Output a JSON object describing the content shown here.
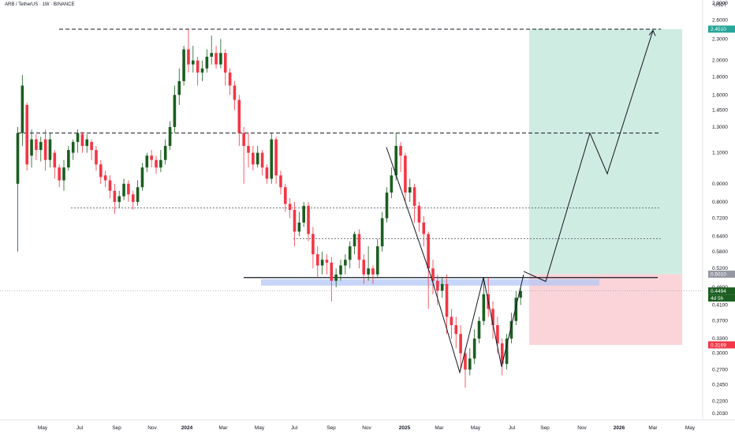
{
  "header": {
    "symbol_title": "ARB / TetherUS · 1W · BINANCE",
    "currency": "USDT"
  },
  "colors": {
    "up": "#089981",
    "up_fill": "#1b5e20",
    "down": "#f23645",
    "profit_zone": "#cfece3",
    "loss_zone": "#fad4d8",
    "support_zone": "#b4c8f5",
    "entry_label_bg": "#9598a1",
    "target_label_bg": "#26a69a",
    "stop_label_bg": "#f23645",
    "current_label_bg": "#1b5e20"
  },
  "chart_data": {
    "type": "candlestick",
    "y_scale": "log",
    "ylim": [
      0.195,
      2.9
    ],
    "y_ticks": [
      "2.9000",
      "2.6000",
      "2.3000",
      "2.0000",
      "1.8000",
      "1.6000",
      "1.4500",
      "1.3000",
      "1.1000",
      "0.9000",
      "0.8000",
      "0.7200",
      "0.6400",
      "0.5800",
      "0.5200",
      "0.4600",
      "0.4100",
      "0.3700",
      "0.3300",
      "0.3000",
      "0.2700",
      "0.2450",
      "0.2200",
      "0.2030"
    ],
    "x_ticks": [
      "May",
      "Jul",
      "Sep",
      "Nov",
      "2024",
      "Mar",
      "May",
      "Jul",
      "Sep",
      "Nov",
      "2025",
      "Mar",
      "May",
      "Jul",
      "Sep",
      "Nov",
      "2026",
      "Mar",
      "May"
    ],
    "price_labels": {
      "target": "2.4510",
      "entry": "0.5010",
      "current": "0.4494",
      "countdown": "4d 5h",
      "stop": "0.3169"
    },
    "levels": [
      {
        "price": 2.45,
        "style": "dashed"
      },
      {
        "price": 1.25,
        "style": "dashed"
      },
      {
        "price": 0.77,
        "style": "dotted"
      },
      {
        "price": 0.63,
        "style": "dotted"
      },
      {
        "price": 0.49,
        "style": "solid"
      }
    ],
    "support_zone": [
      0.465,
      0.485
    ],
    "position": {
      "entry": 0.501,
      "target": 2.451,
      "stop": 0.3169
    },
    "projection_path": [
      0.51,
      0.478,
      1.25,
      0.96,
      2.43
    ],
    "w_pattern_path": [
      1.14,
      0.49,
      0.265,
      0.49,
      0.275,
      0.5
    ],
    "candles": [
      [
        0.9,
        1.25,
        0.58,
        1.3
      ],
      [
        1.25,
        1.7,
        1.15,
        1.82
      ],
      [
        1.5,
        1.02,
        0.98,
        1.52
      ],
      [
        1.08,
        1.2,
        1.0,
        1.28
      ],
      [
        1.2,
        1.12,
        1.05,
        1.24
      ],
      [
        1.12,
        1.18,
        1.04,
        1.22
      ],
      [
        1.2,
        1.05,
        0.98,
        1.28
      ],
      [
        1.05,
        1.2,
        1.0,
        1.25
      ],
      [
        1.1,
        1.0,
        0.93,
        1.12
      ],
      [
        1.0,
        0.92,
        0.88,
        1.02
      ],
      [
        0.92,
        1.0,
        0.86,
        1.05
      ],
      [
        1.0,
        1.12,
        0.98,
        1.15
      ],
      [
        1.1,
        1.18,
        1.05,
        1.2
      ],
      [
        1.18,
        1.25,
        1.1,
        1.28
      ],
      [
        1.24,
        1.15,
        1.1,
        1.26
      ],
      [
        1.15,
        1.2,
        1.1,
        1.24
      ],
      [
        1.18,
        1.12,
        1.05,
        1.2
      ],
      [
        1.12,
        1.02,
        0.98,
        1.15
      ],
      [
        1.02,
        0.94,
        0.9,
        1.05
      ],
      [
        0.95,
        0.92,
        0.88,
        0.98
      ],
      [
        0.92,
        0.86,
        0.82,
        0.95
      ],
      [
        0.86,
        0.8,
        0.74,
        0.9
      ],
      [
        0.8,
        0.83,
        0.77,
        0.86
      ],
      [
        0.83,
        0.9,
        0.81,
        0.93
      ],
      [
        0.9,
        0.84,
        0.8,
        0.92
      ],
      [
        0.84,
        0.8,
        0.76,
        0.86
      ],
      [
        0.8,
        0.88,
        0.78,
        0.92
      ],
      [
        0.88,
        1.0,
        0.86,
        1.03
      ],
      [
        1.0,
        1.08,
        0.97,
        1.1
      ],
      [
        1.08,
        1.05,
        1.0,
        1.12
      ],
      [
        1.05,
        1.0,
        0.96,
        1.08
      ],
      [
        1.0,
        1.05,
        0.97,
        1.12
      ],
      [
        1.05,
        1.15,
        1.02,
        1.2
      ],
      [
        1.15,
        1.3,
        1.12,
        1.35
      ],
      [
        1.3,
        1.6,
        1.25,
        1.7
      ],
      [
        1.6,
        1.75,
        1.5,
        1.9
      ],
      [
        1.75,
        2.15,
        1.7,
        2.2
      ],
      [
        2.15,
        1.95,
        1.85,
        2.45
      ],
      [
        1.95,
        2.0,
        1.85,
        2.2
      ],
      [
        2.0,
        1.85,
        1.7,
        2.05
      ],
      [
        1.85,
        1.9,
        1.75,
        2.0
      ],
      [
        1.9,
        2.05,
        1.85,
        2.15
      ],
      [
        2.05,
        2.1,
        1.95,
        2.35
      ],
      [
        2.1,
        1.95,
        1.9,
        2.2
      ],
      [
        1.95,
        2.1,
        1.9,
        2.3
      ],
      [
        2.1,
        1.85,
        1.7,
        2.15
      ],
      [
        1.85,
        1.7,
        1.6,
        1.9
      ],
      [
        1.7,
        1.55,
        1.45,
        1.75
      ],
      [
        1.55,
        1.25,
        1.15,
        1.6
      ],
      [
        1.25,
        1.15,
        0.9,
        1.3
      ],
      [
        1.15,
        1.1,
        1.0,
        1.25
      ],
      [
        1.1,
        1.02,
        0.98,
        1.15
      ],
      [
        1.02,
        1.1,
        1.0,
        1.15
      ],
      [
        1.1,
        1.0,
        0.95,
        1.12
      ],
      [
        1.0,
        0.93,
        0.9,
        1.02
      ],
      [
        0.93,
        1.2,
        0.9,
        1.25
      ],
      [
        1.2,
        0.95,
        0.9,
        1.22
      ],
      [
        0.95,
        0.88,
        0.84,
        0.98
      ],
      [
        0.88,
        0.79,
        0.75,
        0.9
      ],
      [
        0.79,
        0.76,
        0.72,
        0.82
      ],
      [
        0.76,
        0.66,
        0.6,
        0.8
      ],
      [
        0.66,
        0.7,
        0.64,
        0.75
      ],
      [
        0.7,
        0.78,
        0.68,
        0.8
      ],
      [
        0.78,
        0.65,
        0.62,
        0.8
      ],
      [
        0.65,
        0.57,
        0.52,
        0.68
      ],
      [
        0.57,
        0.53,
        0.49,
        0.6
      ],
      [
        0.53,
        0.55,
        0.5,
        0.58
      ],
      [
        0.55,
        0.54,
        0.5,
        0.57
      ],
      [
        0.54,
        0.48,
        0.42,
        0.56
      ],
      [
        0.48,
        0.5,
        0.46,
        0.52
      ],
      [
        0.5,
        0.53,
        0.48,
        0.55
      ],
      [
        0.53,
        0.55,
        0.5,
        0.57
      ],
      [
        0.55,
        0.6,
        0.52,
        0.62
      ],
      [
        0.6,
        0.65,
        0.57,
        0.66
      ],
      [
        0.65,
        0.55,
        0.52,
        0.67
      ],
      [
        0.55,
        0.5,
        0.47,
        0.57
      ],
      [
        0.5,
        0.52,
        0.48,
        0.6
      ],
      [
        0.52,
        0.5,
        0.47,
        0.53
      ],
      [
        0.5,
        0.6,
        0.49,
        0.63
      ],
      [
        0.6,
        0.72,
        0.58,
        0.75
      ],
      [
        0.72,
        0.85,
        0.7,
        0.88
      ],
      [
        0.85,
        0.95,
        0.82,
        1.0
      ],
      [
        0.95,
        1.15,
        0.92,
        1.25
      ],
      [
        1.15,
        1.08,
        0.97,
        1.18
      ],
      [
        1.08,
        0.85,
        0.8,
        1.1
      ],
      [
        0.85,
        0.88,
        0.8,
        0.93
      ],
      [
        0.88,
        0.78,
        0.7,
        0.9
      ],
      [
        0.78,
        0.7,
        0.66,
        0.8
      ],
      [
        0.7,
        0.65,
        0.6,
        0.73
      ],
      [
        0.65,
        0.52,
        0.4,
        0.66
      ],
      [
        0.52,
        0.48,
        0.44,
        0.55
      ],
      [
        0.48,
        0.45,
        0.41,
        0.5
      ],
      [
        0.45,
        0.47,
        0.43,
        0.49
      ],
      [
        0.47,
        0.38,
        0.34,
        0.5
      ],
      [
        0.38,
        0.36,
        0.33,
        0.4
      ],
      [
        0.36,
        0.34,
        0.31,
        0.38
      ],
      [
        0.34,
        0.3,
        0.27,
        0.36
      ],
      [
        0.3,
        0.27,
        0.24,
        0.31
      ],
      [
        0.27,
        0.29,
        0.26,
        0.31
      ],
      [
        0.29,
        0.33,
        0.28,
        0.35
      ],
      [
        0.33,
        0.37,
        0.32,
        0.38
      ],
      [
        0.37,
        0.44,
        0.36,
        0.49
      ],
      [
        0.44,
        0.4,
        0.38,
        0.49
      ],
      [
        0.4,
        0.36,
        0.33,
        0.42
      ],
      [
        0.36,
        0.32,
        0.3,
        0.38
      ],
      [
        0.32,
        0.28,
        0.26,
        0.33
      ],
      [
        0.28,
        0.33,
        0.27,
        0.34
      ],
      [
        0.33,
        0.37,
        0.32,
        0.39
      ],
      [
        0.37,
        0.43,
        0.36,
        0.45
      ],
      [
        0.43,
        0.4494,
        0.41,
        0.46
      ]
    ]
  }
}
